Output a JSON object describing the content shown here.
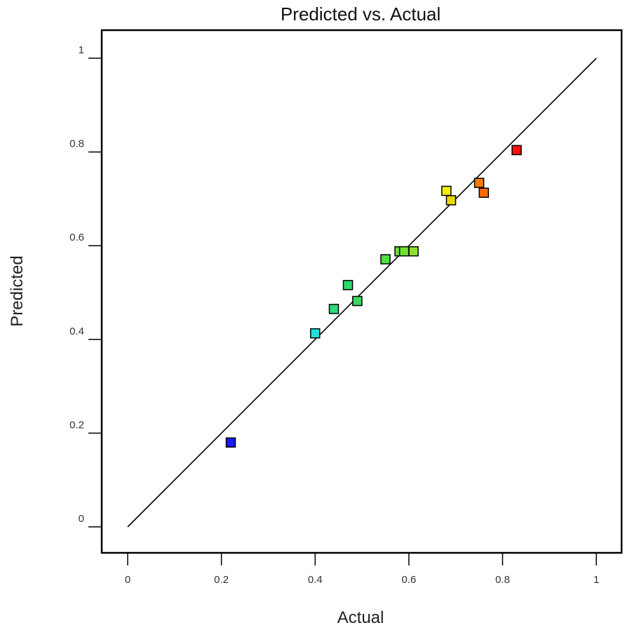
{
  "chart_data": {
    "type": "scatter",
    "title": "Predicted vs. Actual",
    "xlabel": "Actual",
    "ylabel": "Predicted",
    "xlim": [
      0,
      1
    ],
    "ylim": [
      0,
      1
    ],
    "x_ticks": [
      "0",
      "0.2",
      "0.4",
      "0.6",
      "0.8",
      "1"
    ],
    "y_ticks": [
      "0",
      "0.2",
      "0.4",
      "0.6",
      "0.8",
      "1"
    ],
    "grid": false,
    "reference_line": {
      "from": [
        0,
        0
      ],
      "to": [
        1,
        1
      ],
      "color": "#000000"
    },
    "marker": "square",
    "points": [
      {
        "x": 0.22,
        "y": 0.18,
        "color": "#1a1aff"
      },
      {
        "x": 0.4,
        "y": 0.413,
        "color": "#22e0d8"
      },
      {
        "x": 0.44,
        "y": 0.465,
        "color": "#2fd87a"
      },
      {
        "x": 0.47,
        "y": 0.516,
        "color": "#2fd86a"
      },
      {
        "x": 0.49,
        "y": 0.482,
        "color": "#3ad860"
      },
      {
        "x": 0.55,
        "y": 0.571,
        "color": "#4ce040"
      },
      {
        "x": 0.58,
        "y": 0.588,
        "color": "#66e033"
      },
      {
        "x": 0.59,
        "y": 0.588,
        "color": "#70e030"
      },
      {
        "x": 0.61,
        "y": 0.588,
        "color": "#90e030"
      },
      {
        "x": 0.68,
        "y": 0.717,
        "color": "#f4f000"
      },
      {
        "x": 0.69,
        "y": 0.697,
        "color": "#e8d800"
      },
      {
        "x": 0.75,
        "y": 0.734,
        "color": "#ff7a00"
      },
      {
        "x": 0.76,
        "y": 0.713,
        "color": "#ff6a00"
      },
      {
        "x": 0.83,
        "y": 0.804,
        "color": "#ff1010"
      }
    ]
  }
}
